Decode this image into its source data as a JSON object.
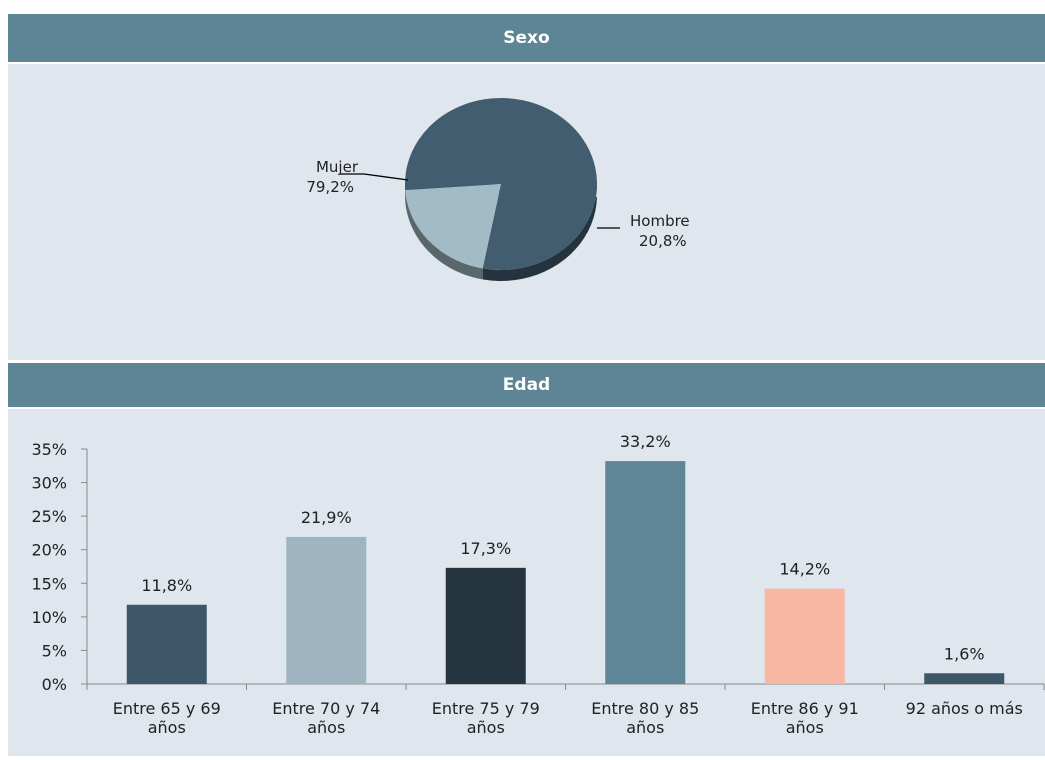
{
  "panels": {
    "sexo_title": "Sexo",
    "edad_title": "Edad"
  },
  "chart_data": [
    {
      "type": "pie",
      "title": "Sexo",
      "slices": [
        {
          "label": "Mujer",
          "value": 79.2,
          "value_label": "79,2%",
          "color": "#425d70"
        },
        {
          "label": "Hombre",
          "value": 20.8,
          "value_label": "20,8%",
          "color": "#a2bbc6"
        }
      ],
      "three_d": true
    },
    {
      "type": "bar",
      "title": "Edad",
      "categories": [
        [
          "Entre 65 y 69",
          "años"
        ],
        [
          "Entre 70 y 74",
          "años"
        ],
        [
          "Entre 75 y 79",
          "años"
        ],
        [
          "Entre 80 y 85",
          "años"
        ],
        [
          "Entre 86 y 91",
          "años"
        ],
        [
          "92 años o más"
        ]
      ],
      "values": [
        11.8,
        21.9,
        17.3,
        33.2,
        14.2,
        1.6
      ],
      "value_labels": [
        "11,8%",
        "21,9%",
        "17,3%",
        "33,2%",
        "14,2%",
        "1,6%"
      ],
      "colors": [
        "#3d5668",
        "#9eb5c1",
        "#253540",
        "#5f8696",
        "#f6b7a3",
        "#3d5668"
      ],
      "ylim": [
        0,
        35
      ],
      "yticks": [
        "0%",
        "5%",
        "10%",
        "15%",
        "20%",
        "25%",
        "30%",
        "35%"
      ],
      "grid": false
    }
  ]
}
